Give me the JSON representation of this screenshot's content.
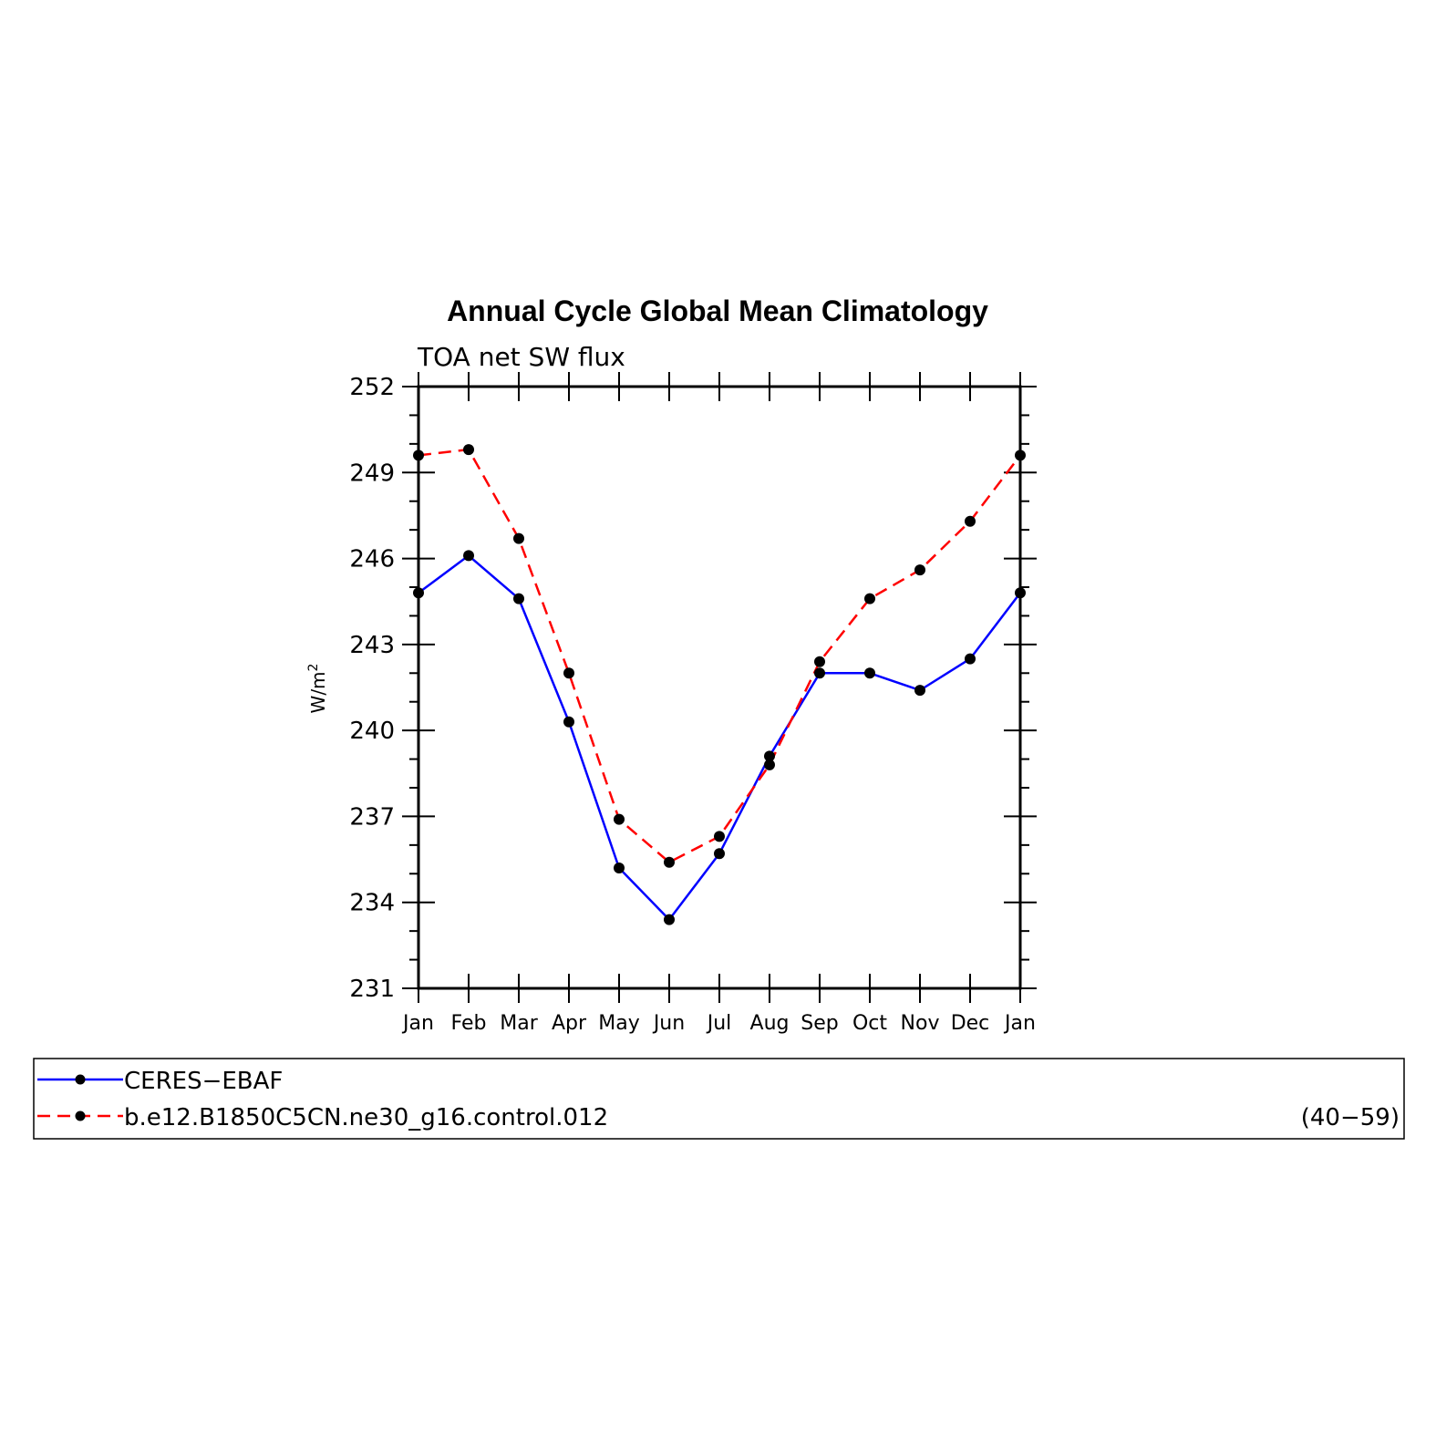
{
  "chart_data": {
    "type": "line",
    "title": "Annual Cycle Global Mean Climatology",
    "subtitle": "TOA net SW flux",
    "xlabel": "",
    "ylabel": "W/m",
    "ylabel_sup": "2",
    "ylim": [
      231,
      252
    ],
    "yticks": [
      "231",
      "234",
      "237",
      "240",
      "243",
      "246",
      "249",
      "252"
    ],
    "categories": [
      "Jan",
      "Feb",
      "Mar",
      "Apr",
      "May",
      "Jun",
      "Jul",
      "Aug",
      "Sep",
      "Oct",
      "Nov",
      "Dec",
      "Jan"
    ],
    "series": [
      {
        "name": "CERES−EBAF",
        "color": "#0000ff",
        "dash": "solid",
        "values": [
          244.8,
          246.1,
          244.6,
          240.3,
          235.2,
          233.4,
          235.7,
          239.1,
          242.0,
          242.0,
          241.4,
          242.5,
          244.8
        ]
      },
      {
        "name": "b.e12.B1850C5CN.ne30_g16.control.012",
        "color": "#ff0000",
        "dash": "dashed",
        "values": [
          249.6,
          249.8,
          246.7,
          242.0,
          236.9,
          235.4,
          236.3,
          238.8,
          242.4,
          244.6,
          245.6,
          247.3,
          249.6
        ]
      }
    ],
    "legend_note": "(40−59)",
    "legend_position": "bottom",
    "marker_color": "#000000"
  }
}
